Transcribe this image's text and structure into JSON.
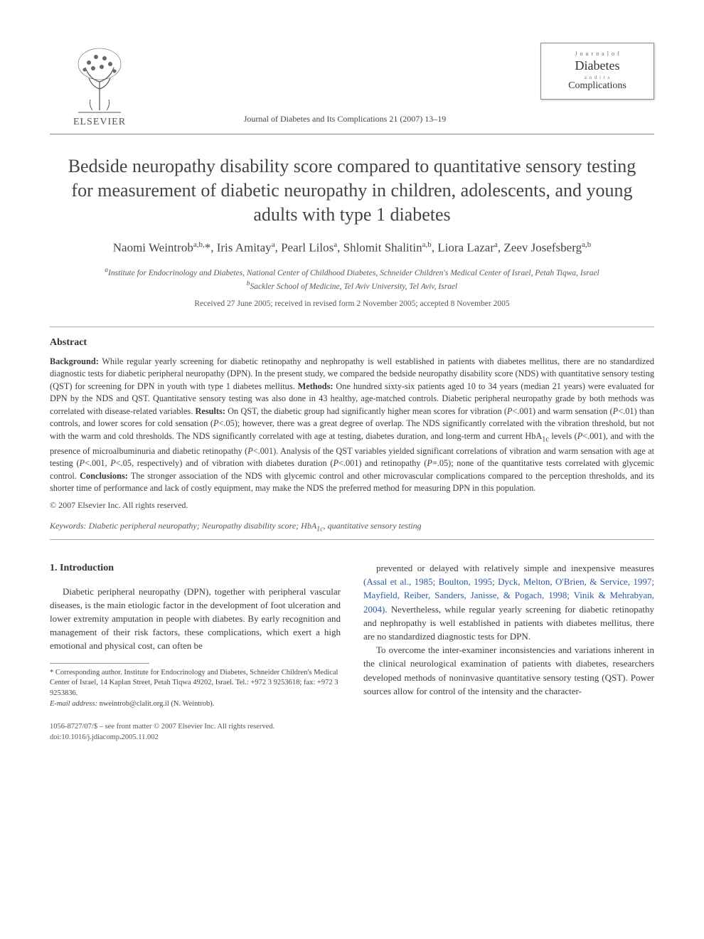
{
  "header": {
    "publisher": "ELSEVIER",
    "journal_ref": "Journal of Diabetes and Its Complications 21 (2007) 13–19",
    "journal_logo": {
      "top": "J o u r n a l   o f",
      "main": "Diabetes",
      "mid": "a n d   i t s",
      "sub": "Complications"
    }
  },
  "title": "Bedside neuropathy disability score compared to quantitative sensory testing for measurement of diabetic neuropathy in children, adolescents, and young adults with type 1 diabetes",
  "authors_html": "Naomi Weintrob<sup>a,b,</sup>*, Iris Amitay<sup>a</sup>, Pearl Lilos<sup>a</sup>, Shlomit Shalitin<sup>a,b</sup>, Liora Lazar<sup>a</sup>, Zeev Josefsberg<sup>a,b</sup>",
  "affiliations": {
    "a": "Institute for Endocrinology and Diabetes, National Center of Childhood Diabetes, Schneider Children's Medical Center of Israel, Petah Tiqwa, Israel",
    "b": "Sackler School of Medicine, Tel Aviv University, Tel Aviv, Israel"
  },
  "dates": "Received 27 June 2005; received in revised form 2 November 2005; accepted 8 November 2005",
  "abstract": {
    "heading": "Abstract",
    "background_label": "Background:",
    "background": "While regular yearly screening for diabetic retinopathy and nephropathy is well established in patients with diabetes mellitus, there are no standardized diagnostic tests for diabetic peripheral neuropathy (DPN). In the present study, we compared the bedside neuropathy disability score (NDS) with quantitative sensory testing (QST) for screening for DPN in youth with type 1 diabetes mellitus.",
    "methods_label": "Methods:",
    "methods": "One hundred sixty-six patients aged 10 to 34 years (median 21 years) were evaluated for DPN by the NDS and QST. Quantitative sensory testing was also done in 43 healthy, age-matched controls. Diabetic peripheral neuropathy grade by both methods was correlated with disease-related variables.",
    "results_label": "Results:",
    "results": "On QST, the diabetic group had significantly higher mean scores for vibration (P<.001) and warm sensation (P<.01) than controls, and lower scores for cold sensation (P<.05); however, there was a great degree of overlap. The NDS significantly correlated with the vibration threshold, but not with the warm and cold thresholds. The NDS significantly correlated with age at testing, diabetes duration, and long-term and current HbA1c levels (P<.001), and with the presence of microalbuminuria and diabetic retinopathy (P<.001). Analysis of the QST variables yielded significant correlations of vibration and warm sensation with age at testing (P<.001, P<.05, respectively) and of vibration with diabetes duration (P<.001) and retinopathy (P=.05); none of the quantitative tests correlated with glycemic control.",
    "conclusions_label": "Conclusions:",
    "conclusions": "The stronger association of the NDS with glycemic control and other microvascular complications compared to the perception thresholds, and its shorter time of performance and lack of costly equipment, may make the NDS the preferred method for measuring DPN in this population.",
    "copyright": "© 2007 Elsevier Inc. All rights reserved."
  },
  "keywords": {
    "label": "Keywords:",
    "text": "Diabetic peripheral neuropathy; Neuropathy disability score; HbA1c, quantitative sensory testing"
  },
  "intro": {
    "heading": "1. Introduction",
    "col1_p1": "Diabetic peripheral neuropathy (DPN), together with peripheral vascular diseases, is the main etiologic factor in the development of foot ulceration and lower extremity amputation in people with diabetes. By early recognition and management of their risk factors, these complications, which exert a high emotional and physical cost, can often be",
    "col2_p1_a": "prevented or delayed with relatively simple and inexpensive measures ",
    "col2_p1_cite": "(Assal et al., 1985; Boulton, 1995; Dyck, Melton, O'Brien, & Service, 1997; Mayfield, Reiber, Sanders, Janisse, & Pogach, 1998; Vinik & Mehrabyan, 2004)",
    "col2_p1_b": ". Nevertheless, while regular yearly screening for diabetic retinopathy and nephropathy is well established in patients with diabetes mellitus, there are no standardized diagnostic tests for DPN.",
    "col2_p2": "To overcome the inter-examiner inconsistencies and variations inherent in the clinical neurological examination of patients with diabetes, researchers developed methods of noninvasive quantitative sensory testing (QST). Power sources allow for control of the intensity and the character-"
  },
  "footnote": {
    "corr": "* Corresponding author. Institute for Endocrinology and Diabetes, Schneider Children's Medical Center of Israel, 14 Kaplan Street, Petah Tiqwa 49202, Israel. Tel.: +972 3 9253618; fax: +972 3 9253836.",
    "email_label": "E-mail address:",
    "email": "nweintrob@clalit.org.il (N. Weintrob)."
  },
  "bottom": {
    "issn": "1056-8727/07/$ – see front matter © 2007 Elsevier Inc. All rights reserved.",
    "doi": "doi:10.1016/j.jdiacomp.2005.11.002"
  },
  "colors": {
    "text": "#3a3a3a",
    "citation": "#2a5aa8",
    "rule": "#888888"
  }
}
